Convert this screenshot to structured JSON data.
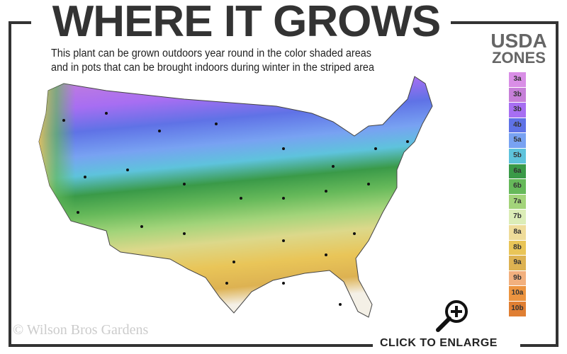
{
  "header": {
    "title": "WHERE IT GROWS",
    "subtitle_line1": "This plant can be grown outdoors year round in the color shaded areas",
    "subtitle_line2": "and in pots that can be brought indoors during winter in the striped area"
  },
  "legend": {
    "title_line1": "USDA",
    "title_line2": "ZONES",
    "zones": [
      {
        "label": "3a",
        "color": "#d98ee6"
      },
      {
        "label": "3b",
        "color": "#c77fd9"
      },
      {
        "label": "3b",
        "color": "#a76ef2"
      },
      {
        "label": "4b",
        "color": "#5f72e6"
      },
      {
        "label": "5a",
        "color": "#78a2f2"
      },
      {
        "label": "5b",
        "color": "#5ec3dc"
      },
      {
        "label": "6a",
        "color": "#3a9a48"
      },
      {
        "label": "6b",
        "color": "#66b95a"
      },
      {
        "label": "7a",
        "color": "#a3d47a"
      },
      {
        "label": "7b",
        "color": "#dcedb8"
      },
      {
        "label": "8a",
        "color": "#efdc9a"
      },
      {
        "label": "8b",
        "color": "#e9c558"
      },
      {
        "label": "9a",
        "color": "#ddb252"
      },
      {
        "label": "9b",
        "color": "#f2b07e"
      },
      {
        "label": "10a",
        "color": "#ec9440"
      },
      {
        "label": "10b",
        "color": "#e07f33"
      }
    ]
  },
  "footer": {
    "copyright": "© Wilson Bros Gardens",
    "enlarge_label": "CLICK TO ENLARGE",
    "enlarge_icon": "magnifier-plus-icon"
  }
}
